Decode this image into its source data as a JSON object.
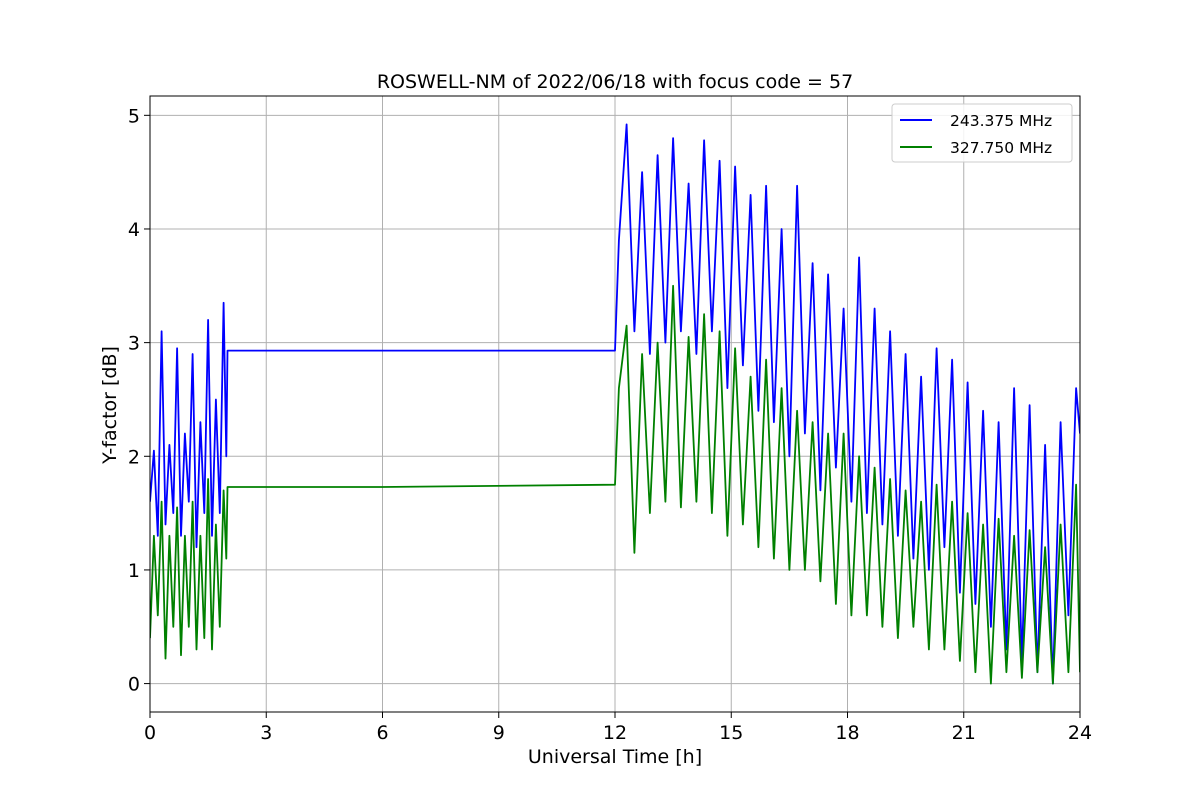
{
  "chart_data": {
    "type": "line",
    "title": "ROSWELL-NM of 2022/06/18 with focus code = 57",
    "xlabel": "Universal Time [h]",
    "ylabel": "Y-factor [dB]",
    "xlim": [
      0,
      24
    ],
    "ylim": [
      -0.25,
      5.17
    ],
    "xticks": [
      0,
      3,
      6,
      9,
      12,
      15,
      18,
      21,
      24
    ],
    "yticks": [
      0,
      1,
      2,
      3,
      4,
      5
    ],
    "grid": true,
    "legend": "top-right",
    "series": [
      {
        "name": "243.375 MHz",
        "color": "#0000ff",
        "x": [
          0,
          0.1,
          0.2,
          0.3,
          0.4,
          0.5,
          0.6,
          0.7,
          0.8,
          0.9,
          1.0,
          1.1,
          1.2,
          1.3,
          1.4,
          1.5,
          1.6,
          1.7,
          1.8,
          1.9,
          1.97,
          2.0,
          6.0,
          12.0,
          12.1,
          12.3,
          12.5,
          12.7,
          12.9,
          13.1,
          13.3,
          13.5,
          13.7,
          13.9,
          14.1,
          14.3,
          14.5,
          14.7,
          14.9,
          15.1,
          15.3,
          15.5,
          15.7,
          15.9,
          16.1,
          16.3,
          16.5,
          16.7,
          16.9,
          17.1,
          17.3,
          17.5,
          17.7,
          17.9,
          18.1,
          18.3,
          18.5,
          18.7,
          18.9,
          19.1,
          19.3,
          19.5,
          19.7,
          19.9,
          20.1,
          20.3,
          20.5,
          20.7,
          20.9,
          21.1,
          21.3,
          21.5,
          21.7,
          21.9,
          22.1,
          22.3,
          22.5,
          22.7,
          22.9,
          23.1,
          23.3,
          23.5,
          23.7,
          23.9,
          24.0
        ],
        "y": [
          1.6,
          2.05,
          1.3,
          3.1,
          1.4,
          2.1,
          1.5,
          2.95,
          1.3,
          2.2,
          1.6,
          2.9,
          1.2,
          2.3,
          1.5,
          3.2,
          1.3,
          2.5,
          1.5,
          3.35,
          2.0,
          2.93,
          2.93,
          2.93,
          3.9,
          4.92,
          3.1,
          4.5,
          2.9,
          4.65,
          3.0,
          4.8,
          3.1,
          4.4,
          2.9,
          4.78,
          3.1,
          4.6,
          2.6,
          4.55,
          2.8,
          4.3,
          2.4,
          4.38,
          2.3,
          4.0,
          2.0,
          4.38,
          2.2,
          3.7,
          1.7,
          3.6,
          1.9,
          3.3,
          1.6,
          3.75,
          1.5,
          3.3,
          1.4,
          3.1,
          1.3,
          2.9,
          1.1,
          2.7,
          1.0,
          2.95,
          1.2,
          2.85,
          0.8,
          2.65,
          0.7,
          2.4,
          0.5,
          2.3,
          0.3,
          2.6,
          0.2,
          2.45,
          0.1,
          2.1,
          0.0,
          2.3,
          0.6,
          2.6,
          2.2
        ]
      },
      {
        "name": "327.750 MHz",
        "color": "#008000",
        "x": [
          0,
          0.1,
          0.2,
          0.3,
          0.4,
          0.5,
          0.6,
          0.7,
          0.8,
          0.9,
          1.0,
          1.1,
          1.2,
          1.3,
          1.4,
          1.5,
          1.6,
          1.7,
          1.8,
          1.9,
          1.97,
          2.0,
          6.0,
          12.0,
          12.1,
          12.3,
          12.5,
          12.7,
          12.9,
          13.1,
          13.3,
          13.5,
          13.7,
          13.9,
          14.1,
          14.3,
          14.5,
          14.7,
          14.9,
          15.1,
          15.3,
          15.5,
          15.7,
          15.9,
          16.1,
          16.3,
          16.5,
          16.7,
          16.9,
          17.1,
          17.3,
          17.5,
          17.7,
          17.9,
          18.1,
          18.3,
          18.5,
          18.7,
          18.9,
          19.1,
          19.3,
          19.5,
          19.7,
          19.9,
          20.1,
          20.3,
          20.5,
          20.7,
          20.9,
          21.1,
          21.3,
          21.5,
          21.7,
          21.9,
          22.1,
          22.3,
          22.5,
          22.7,
          22.9,
          23.1,
          23.3,
          23.5,
          23.7,
          23.9,
          24.0
        ],
        "y": [
          0.4,
          1.3,
          0.6,
          1.6,
          0.22,
          1.3,
          0.5,
          1.55,
          0.25,
          1.3,
          0.5,
          1.6,
          0.3,
          1.3,
          0.4,
          1.8,
          0.3,
          1.4,
          0.5,
          1.7,
          1.1,
          1.73,
          1.73,
          1.75,
          2.6,
          3.15,
          1.15,
          2.9,
          1.5,
          3.0,
          1.6,
          3.5,
          1.55,
          3.05,
          1.6,
          3.25,
          1.5,
          3.1,
          1.3,
          2.95,
          1.4,
          2.7,
          1.2,
          2.85,
          1.1,
          2.6,
          1.0,
          2.4,
          1.0,
          2.3,
          0.9,
          2.2,
          0.7,
          2.2,
          0.6,
          2.0,
          0.6,
          1.9,
          0.5,
          1.8,
          0.4,
          1.7,
          0.5,
          1.6,
          0.3,
          1.75,
          0.3,
          1.6,
          0.2,
          1.5,
          0.1,
          1.4,
          0.0,
          1.45,
          0.1,
          1.3,
          0.05,
          1.35,
          0.1,
          1.2,
          0.0,
          1.4,
          0.1,
          1.75,
          0.1
        ]
      }
    ]
  }
}
